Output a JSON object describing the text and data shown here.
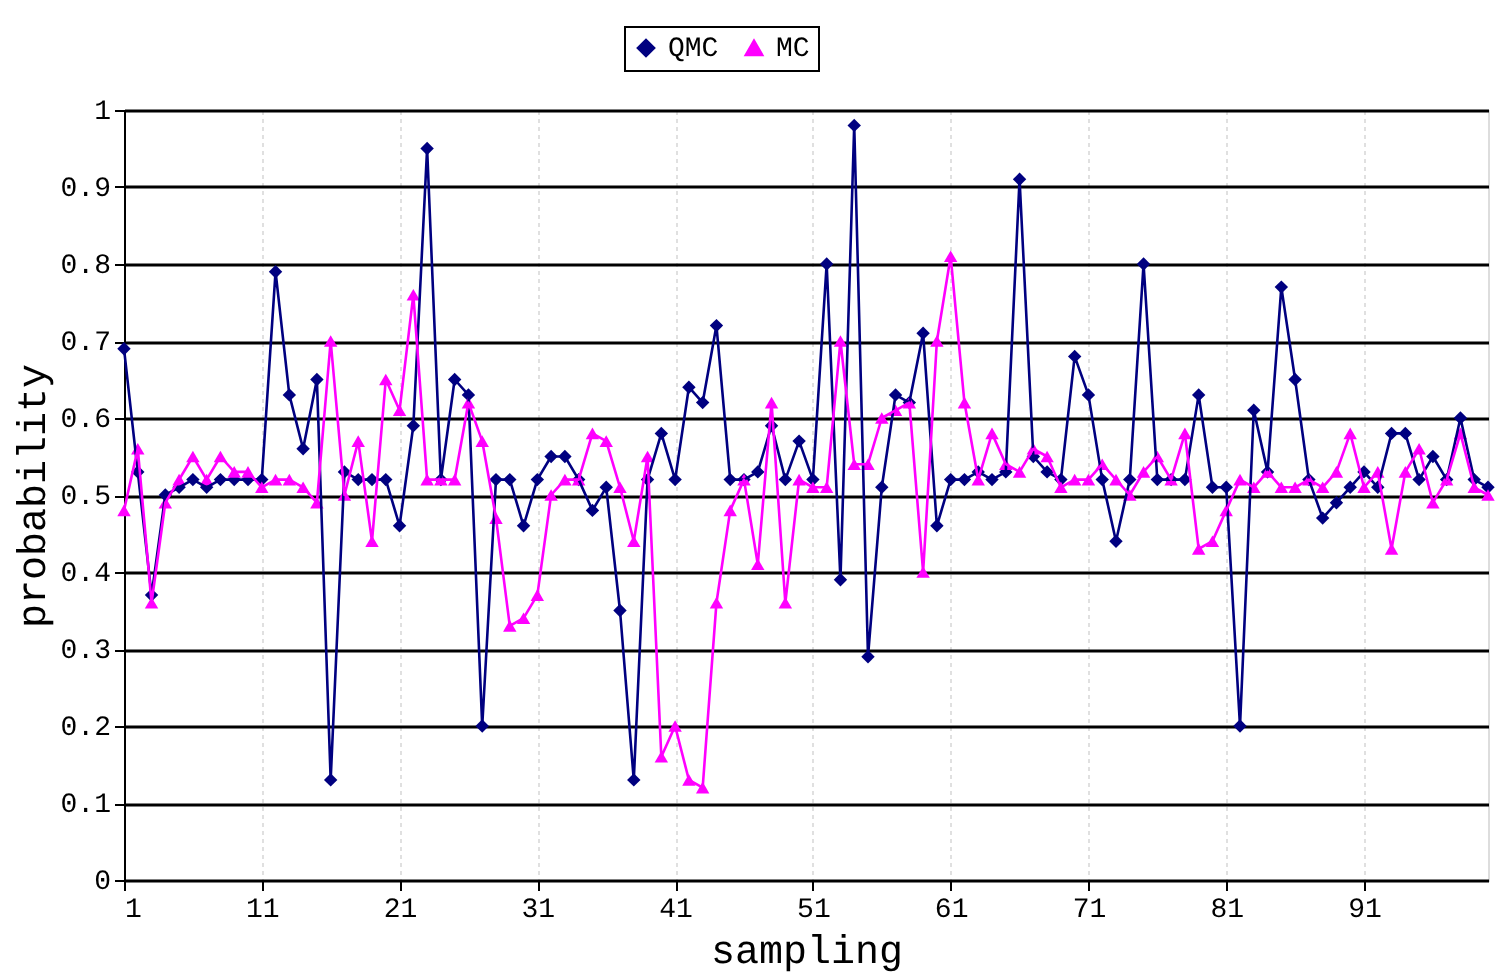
{
  "chart_data": {
    "type": "line",
    "xlabel": "sampling",
    "ylabel": "probability",
    "x": [
      1,
      2,
      3,
      4,
      5,
      6,
      7,
      8,
      9,
      10,
      11,
      12,
      13,
      14,
      15,
      16,
      17,
      18,
      19,
      20,
      21,
      22,
      23,
      24,
      25,
      26,
      27,
      28,
      29,
      30,
      31,
      32,
      33,
      34,
      35,
      36,
      37,
      38,
      39,
      40,
      41,
      42,
      43,
      44,
      45,
      46,
      47,
      48,
      49,
      50,
      51,
      52,
      53,
      54,
      55,
      56,
      57,
      58,
      59,
      60,
      61,
      62,
      63,
      64,
      65,
      66,
      67,
      68,
      69,
      70,
      71,
      72,
      73,
      74,
      75,
      76,
      77,
      78,
      79,
      80,
      81,
      82,
      83,
      84,
      85,
      86,
      87,
      88,
      89,
      90,
      91,
      92,
      93,
      94,
      95,
      96,
      97,
      98,
      99,
      100
    ],
    "series": [
      {
        "name": "QMC",
        "color": "#000080",
        "marker": "diamond",
        "values": [
          0.69,
          0.53,
          0.37,
          0.5,
          0.51,
          0.52,
          0.51,
          0.52,
          0.52,
          0.52,
          0.52,
          0.79,
          0.63,
          0.56,
          0.65,
          0.13,
          0.53,
          0.52,
          0.52,
          0.52,
          0.46,
          0.59,
          0.95,
          0.52,
          0.65,
          0.63,
          0.2,
          0.52,
          0.52,
          0.46,
          0.52,
          0.55,
          0.55,
          0.52,
          0.48,
          0.51,
          0.35,
          0.13,
          0.52,
          0.58,
          0.52,
          0.64,
          0.62,
          0.72,
          0.52,
          0.52,
          0.53,
          0.59,
          0.52,
          0.57,
          0.52,
          0.8,
          0.39,
          0.98,
          0.29,
          0.51,
          0.63,
          0.62,
          0.71,
          0.46,
          0.52,
          0.52,
          0.53,
          0.52,
          0.53,
          0.91,
          0.55,
          0.53,
          0.52,
          0.68,
          0.63,
          0.52,
          0.44,
          0.52,
          0.8,
          0.52,
          0.52,
          0.52,
          0.63,
          0.51,
          0.51,
          0.2,
          0.61,
          0.53,
          0.77,
          0.65,
          0.52,
          0.47,
          0.49,
          0.51,
          0.53,
          0.51,
          0.58,
          0.58,
          0.52,
          0.55,
          0.52,
          0.6,
          0.52,
          0.51
        ]
      },
      {
        "name": "MC",
        "color": "#ff00ff",
        "marker": "triangle",
        "values": [
          0.48,
          0.56,
          0.36,
          0.49,
          0.52,
          0.55,
          0.52,
          0.55,
          0.53,
          0.53,
          0.51,
          0.52,
          0.52,
          0.51,
          0.49,
          0.7,
          0.5,
          0.57,
          0.44,
          0.65,
          0.61,
          0.76,
          0.52,
          0.52,
          0.52,
          0.62,
          0.57,
          0.47,
          0.33,
          0.34,
          0.37,
          0.5,
          0.52,
          0.52,
          0.58,
          0.57,
          0.51,
          0.44,
          0.55,
          0.16,
          0.2,
          0.13,
          0.12,
          0.36,
          0.48,
          0.52,
          0.41,
          0.62,
          0.36,
          0.52,
          0.51,
          0.51,
          0.7,
          0.54,
          0.54,
          0.6,
          0.61,
          0.62,
          0.4,
          0.7,
          0.81,
          0.62,
          0.52,
          0.58,
          0.54,
          0.53,
          0.56,
          0.55,
          0.51,
          0.52,
          0.52,
          0.54,
          0.52,
          0.5,
          0.53,
          0.55,
          0.52,
          0.58,
          0.43,
          0.44,
          0.48,
          0.52,
          0.51,
          0.53,
          0.51,
          0.51,
          0.52,
          0.51,
          0.53,
          0.58,
          0.51,
          0.53,
          0.43,
          0.53,
          0.56,
          0.49,
          0.52,
          0.58,
          0.51,
          0.5
        ]
      }
    ],
    "xlim": [
      1,
      100
    ],
    "xticks": [
      1,
      11,
      21,
      31,
      41,
      51,
      61,
      71,
      81,
      91
    ],
    "ylim": [
      0,
      1
    ],
    "yticks": [
      0,
      0.1,
      0.2,
      0.3,
      0.4,
      0.5,
      0.6,
      0.7,
      0.8,
      0.9,
      1
    ],
    "grid": true,
    "legend": "top",
    "line_style": "solid"
  }
}
